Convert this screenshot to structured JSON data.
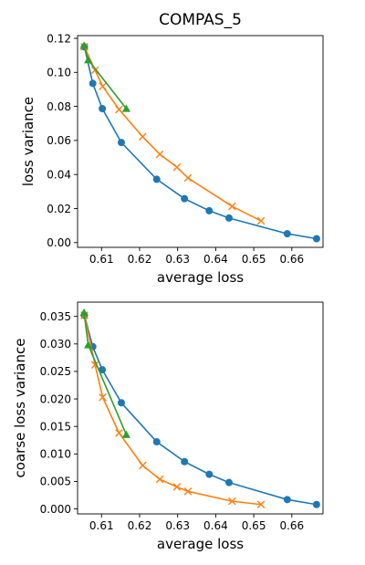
{
  "chart_data": [
    {
      "type": "line",
      "title": "COMPAS_5",
      "xlabel": "average loss",
      "ylabel": "loss variance",
      "xlim": [
        0.6037,
        0.6682
      ],
      "ylim": [
        -0.0028,
        0.1216
      ],
      "xticks": [
        0.61,
        0.62,
        0.63,
        0.64,
        0.65,
        0.66
      ],
      "xtick_labels": [
        "0.61",
        "0.62",
        "0.63",
        "0.64",
        "0.65",
        "0.66"
      ],
      "yticks": [
        0.0,
        0.02,
        0.04,
        0.06,
        0.08,
        0.1,
        0.12
      ],
      "ytick_labels": [
        "0.00",
        "0.02",
        "0.04",
        "0.06",
        "0.08",
        "0.10",
        "0.12"
      ],
      "grid": false,
      "series": [
        {
          "marker": "circle",
          "color": "#1f77b4",
          "x": [
            0.6055,
            0.6077,
            0.6102,
            0.6152,
            0.6245,
            0.6318,
            0.6383,
            0.6435,
            0.6588,
            0.6665
          ],
          "y": [
            0.115,
            0.0935,
            0.0787,
            0.0588,
            0.0372,
            0.0258,
            0.0187,
            0.0144,
            0.0052,
            0.0023
          ]
        },
        {
          "marker": "x",
          "color": "#ff7f0e",
          "x": [
            0.6055,
            0.6083,
            0.6103,
            0.6146,
            0.6208,
            0.6253,
            0.6298,
            0.6327,
            0.6443,
            0.6519
          ],
          "y": [
            0.115,
            0.1013,
            0.0918,
            0.0782,
            0.0622,
            0.0519,
            0.0443,
            0.038,
            0.0213,
            0.0128
          ]
        },
        {
          "marker": "triangle",
          "color": "#2ca02c",
          "x": [
            0.6054,
            0.6065,
            0.6165
          ],
          "y": [
            0.1157,
            0.1073,
            0.0787
          ]
        }
      ]
    },
    {
      "type": "line",
      "title": "",
      "xlabel": "average loss",
      "ylabel": "coarse loss variance",
      "xlim": [
        0.6037,
        0.6682
      ],
      "ylim": [
        -0.0009,
        0.0376
      ],
      "xticks": [
        0.61,
        0.62,
        0.63,
        0.64,
        0.65,
        0.66
      ],
      "xtick_labels": [
        "0.61",
        "0.62",
        "0.63",
        "0.64",
        "0.65",
        "0.66"
      ],
      "yticks": [
        0.0,
        0.005,
        0.01,
        0.015,
        0.02,
        0.025,
        0.03,
        0.035
      ],
      "ytick_labels": [
        "0.000",
        "0.005",
        "0.010",
        "0.015",
        "0.020",
        "0.025",
        "0.030",
        "0.035"
      ],
      "grid": false,
      "series": [
        {
          "marker": "circle",
          "color": "#1f77b4",
          "x": [
            0.6055,
            0.6077,
            0.6102,
            0.6152,
            0.6245,
            0.6318,
            0.6383,
            0.6435,
            0.6588,
            0.6665
          ],
          "y": [
            0.0352,
            0.0295,
            0.0253,
            0.0193,
            0.0122,
            0.0086,
            0.0063,
            0.0048,
            0.0017,
            0.0008
          ]
        },
        {
          "marker": "x",
          "color": "#ff7f0e",
          "x": [
            0.6055,
            0.6083,
            0.6103,
            0.6146,
            0.6208,
            0.6253,
            0.6298,
            0.6327,
            0.6443,
            0.6519
          ],
          "y": [
            0.0352,
            0.0262,
            0.0203,
            0.0138,
            0.0079,
            0.0054,
            0.004,
            0.0032,
            0.0014,
            0.0008
          ]
        },
        {
          "marker": "triangle",
          "color": "#2ca02c",
          "x": [
            0.6054,
            0.6065,
            0.6165
          ],
          "y": [
            0.0357,
            0.0298,
            0.0135
          ]
        }
      ]
    }
  ]
}
